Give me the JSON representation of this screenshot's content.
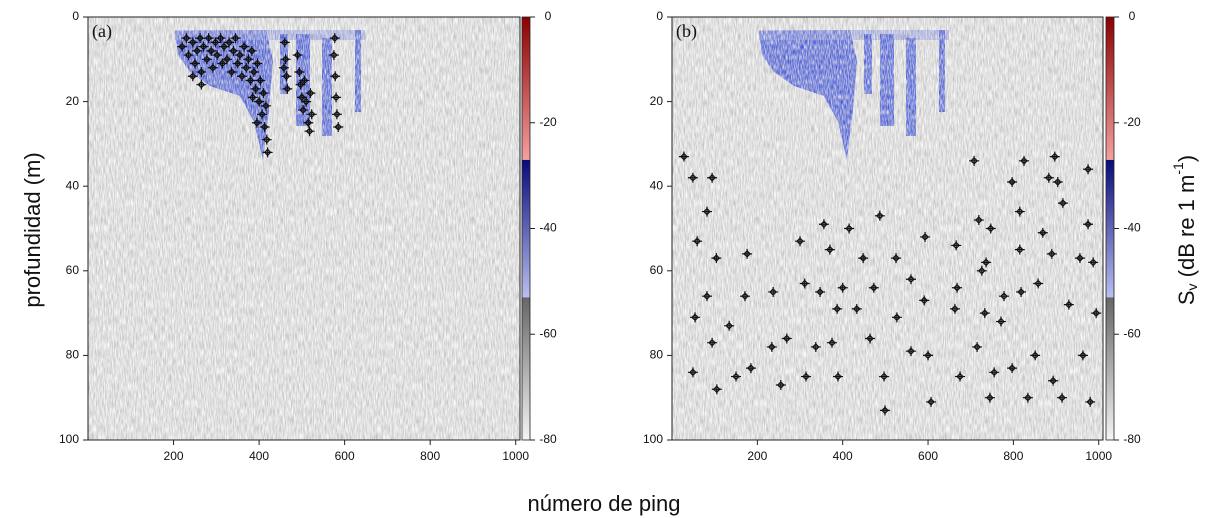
{
  "y_label": "profundidad (m)",
  "x_label": "número de ping",
  "colorbar_label": {
    "main": "S",
    "sub": "v",
    "unit": " (dB re 1 m",
    "sup": "-1",
    "close": ")"
  },
  "chart_data": [
    {
      "type": "scatter",
      "panel_label": "(a)",
      "xlim": [
        0,
        1010
      ],
      "ylim": [
        0,
        100
      ],
      "y_inverted": true,
      "xticks": [
        200,
        400,
        600,
        800,
        1000
      ],
      "yticks": [
        0,
        20,
        40,
        60,
        80,
        100
      ],
      "marker_color": "#111111",
      "x": [
        220,
        230,
        235,
        245,
        250,
        255,
        262,
        265,
        270,
        278,
        282,
        288,
        292,
        298,
        302,
        310,
        314,
        318,
        325,
        330,
        336,
        340,
        345,
        350,
        355,
        360,
        365,
        370,
        375,
        380,
        383,
        388,
        392,
        396,
        400,
        403,
        407,
        410,
        413,
        416,
        418,
        420,
        395,
        385,
        460,
        462,
        464,
        466,
        458,
        490,
        494,
        497,
        500,
        503,
        506,
        510,
        515,
        518,
        520,
        523,
        575,
        578,
        580,
        582,
        585,
        577,
        265,
        245
      ],
      "y": [
        7,
        5,
        9,
        6,
        11,
        8,
        5,
        13,
        7,
        10,
        5,
        8,
        12,
        6,
        9,
        5,
        11,
        7,
        10,
        6,
        13,
        8,
        5,
        11,
        9,
        14,
        7,
        12,
        10,
        15,
        8,
        13,
        17,
        11,
        20,
        15,
        23,
        18,
        26,
        21,
        29,
        32,
        25,
        19,
        6,
        10,
        14,
        17,
        12,
        9,
        13,
        16,
        19,
        22,
        15,
        20,
        25,
        27,
        18,
        23,
        9,
        14,
        19,
        23,
        26,
        5,
        16,
        14
      ],
      "colorbar": {
        "lim": [
          -80,
          0
        ],
        "ticks": [
          0,
          -20,
          -40,
          -60,
          -80
        ],
        "bands": [
          {
            "from": -80,
            "to": -53,
            "colors": [
              "#f4f4f4",
              "#666666"
            ]
          },
          {
            "from": -53,
            "to": -27,
            "colors": [
              "#b8bff0",
              "#0a0a78"
            ]
          },
          {
            "from": -27,
            "to": 0,
            "colors": [
              "#f4a0a0",
              "#8c0000"
            ]
          }
        ]
      }
    },
    {
      "type": "scatter",
      "panel_label": "(b)",
      "xlim": [
        0,
        1010
      ],
      "ylim": [
        0,
        100
      ],
      "y_inverted": true,
      "xticks": [
        200,
        400,
        600,
        800,
        1000
      ],
      "yticks": [
        0,
        20,
        40,
        60,
        80,
        100
      ],
      "marker_color": "#111111",
      "x": [
        28,
        49,
        94,
        59,
        82,
        104,
        82,
        54,
        94,
        49,
        105,
        134,
        176,
        171,
        150,
        185,
        237,
        234,
        255,
        269,
        300,
        311,
        314,
        337,
        356,
        347,
        370,
        375,
        387,
        389,
        400,
        415,
        433,
        448,
        464,
        473,
        487,
        497,
        499,
        525,
        527,
        560,
        560,
        591,
        600,
        593,
        607,
        666,
        668,
        663,
        675,
        708,
        719,
        726,
        733,
        715,
        747,
        736,
        755,
        745,
        771,
        778,
        797,
        797,
        815,
        818,
        825,
        815,
        834,
        851,
        869,
        858,
        883,
        897,
        904,
        890,
        916,
        930,
        893,
        914,
        956,
        963,
        975,
        975,
        987,
        994,
        980
      ],
      "y": [
        33,
        38,
        38,
        53,
        46,
        57,
        66,
        71,
        77,
        84,
        88,
        73,
        56,
        66,
        85,
        83,
        65,
        78,
        87,
        76,
        53,
        63,
        85,
        78,
        49,
        65,
        55,
        77,
        69,
        85,
        64,
        50,
        69,
        57,
        76,
        64,
        47,
        85,
        93,
        57,
        71,
        62,
        79,
        67,
        80,
        52,
        91,
        54,
        64,
        69,
        85,
        34,
        48,
        60,
        70,
        78,
        50,
        58,
        84,
        90,
        72,
        66,
        83,
        39,
        55,
        65,
        34,
        46,
        90,
        80,
        51,
        63,
        38,
        33,
        39,
        56,
        44,
        68,
        86,
        90,
        57,
        80,
        49,
        36,
        58,
        70,
        91
      ],
      "colorbar": {
        "lim": [
          -80,
          0
        ],
        "ticks": [
          0,
          -20,
          -40,
          -60,
          -80
        ],
        "bands": [
          {
            "from": -80,
            "to": -53,
            "colors": [
              "#f4f4f4",
              "#666666"
            ]
          },
          {
            "from": -53,
            "to": -27,
            "colors": [
              "#b8bff0",
              "#0a0a78"
            ]
          },
          {
            "from": -27,
            "to": 0,
            "colors": [
              "#f4a0a0",
              "#8c0000"
            ]
          }
        ]
      }
    }
  ]
}
